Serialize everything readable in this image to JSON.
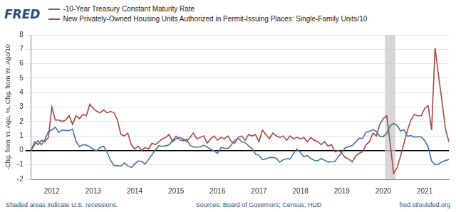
{
  "chart_data": {
    "type": "line",
    "logo_text": "FRED",
    "y_label": "-Chg. from Yr. Ago, %, Chg. from Yr. Ago/10",
    "footnote": "Shaded areas indicate U.S. recessions.",
    "source": "Sources: Board of Governors; Census; HUD",
    "source_url": "fred.stlouisfed.org",
    "legend": "top-left",
    "grid": true,
    "ylim": [
      -2,
      8
    ],
    "yticks": [
      -2,
      -1,
      0,
      1,
      2,
      3,
      4,
      5,
      6,
      7,
      8
    ],
    "categories": [
      null,
      null,
      null,
      null,
      null,
      null,
      "2012",
      null,
      null,
      null,
      null,
      null,
      null,
      null,
      null,
      null,
      null,
      null,
      "2013",
      null,
      null,
      null,
      null,
      null,
      null,
      null,
      null,
      null,
      null,
      null,
      "2014",
      null,
      null,
      null,
      null,
      null,
      null,
      null,
      null,
      null,
      null,
      null,
      "2015",
      null,
      null,
      null,
      null,
      null,
      null,
      null,
      null,
      null,
      null,
      null,
      "2016",
      null,
      null,
      null,
      null,
      null,
      null,
      null,
      null,
      null,
      null,
      null,
      "2017",
      null,
      null,
      null,
      null,
      null,
      null,
      null,
      null,
      null,
      null,
      null,
      "2018",
      null,
      null,
      null,
      null,
      null,
      null,
      null,
      null,
      null,
      null,
      null,
      "2019",
      null,
      null,
      null,
      null,
      null,
      null,
      null,
      null,
      null,
      null,
      null,
      "2020",
      null,
      null,
      null,
      null,
      null,
      null,
      null,
      null,
      null,
      null,
      null,
      "2021",
      null,
      null,
      null,
      null,
      null,
      null,
      null
    ],
    "recession": [
      false,
      false,
      false,
      false,
      false,
      false,
      false,
      false,
      false,
      false,
      false,
      false,
      false,
      false,
      false,
      false,
      false,
      false,
      false,
      false,
      false,
      false,
      false,
      false,
      false,
      false,
      false,
      false,
      false,
      false,
      false,
      false,
      false,
      false,
      false,
      false,
      false,
      false,
      false,
      false,
      false,
      false,
      false,
      false,
      false,
      false,
      false,
      false,
      false,
      false,
      false,
      false,
      false,
      false,
      false,
      false,
      false,
      false,
      false,
      false,
      false,
      false,
      false,
      false,
      false,
      false,
      false,
      false,
      false,
      false,
      false,
      false,
      false,
      false,
      false,
      false,
      false,
      false,
      false,
      false,
      false,
      false,
      false,
      false,
      false,
      false,
      false,
      false,
      false,
      false,
      false,
      false,
      false,
      false,
      false,
      false,
      false,
      false,
      false,
      false,
      false,
      false,
      false,
      true,
      true,
      true,
      false,
      false,
      false,
      false,
      false,
      false,
      false,
      false,
      false,
      false,
      false,
      false,
      false,
      false,
      false,
      false
    ],
    "series": [
      {
        "name": "-10-Year Treasury Constant Maturity Rate",
        "color": "#4572a7",
        "values": [
          0.01,
          0.4,
          0.67,
          0.39,
          0.75,
          1.31,
          1.42,
          1.61,
          1.24,
          1.41,
          1.37,
          1.38,
          1.47,
          0.62,
          0.26,
          0.4,
          0.36,
          0.26,
          0.06,
          -0.01,
          0.21,
          0.29,
          -0.13,
          -0.68,
          -1.05,
          -1.06,
          -1.09,
          -0.87,
          -1.07,
          -1.18,
          -0.95,
          -0.73,
          -0.76,
          -0.95,
          -0.63,
          -0.3,
          0.04,
          0.32,
          0.28,
          0.32,
          0.39,
          0.69,
          0.98,
          0.73,
          0.68,
          0.77,
          0.36,
          0.24,
          0.22,
          0.25,
          0.36,
          0.23,
          0.07,
          -0.03,
          -0.21,
          0.2,
          0.15,
          0.13,
          0.39,
          0.72,
          0.82,
          0.61,
          0.54,
          0.31,
          0.12,
          -0.25,
          -0.34,
          -0.64,
          -0.59,
          -0.49,
          -0.49,
          -0.55,
          -0.82,
          -0.65,
          -0.57,
          -0.6,
          -0.21,
          0.09,
          -0.15,
          -0.44,
          -0.36,
          -0.57,
          -0.68,
          -0.72,
          -0.57,
          -0.68,
          -0.8,
          -0.79,
          -0.77,
          -0.43,
          -0.13,
          0.18,
          0.27,
          0.34,
          0.58,
          0.84,
          0.83,
          1.26,
          1.3,
          1.44,
          1.31,
          0.97,
          0.95,
          1.18,
          1.7,
          1.87,
          1.73,
          1.34,
          1.44,
          0.98,
          1.02,
          0.92,
          0.94,
          0.93,
          0.68,
          0.24,
          -0.74,
          -0.98,
          -0.95,
          -0.79,
          -0.7,
          -0.63
        ]
      },
      {
        "name": "New Privately-Owned Housing Units Authorized in Permit-Issuing Places: Single-Family Units/10",
        "color": "#aa4643",
        "values": [
          0.0,
          0.6,
          0.4,
          0.7,
          0.6,
          0.9,
          3.0,
          2.1,
          2.1,
          2.0,
          2.1,
          2.4,
          1.8,
          2.4,
          2.2,
          2.5,
          2.4,
          3.2,
          2.9,
          2.7,
          2.6,
          2.8,
          2.6,
          2.7,
          2.6,
          2.1,
          1.1,
          1.0,
          1.2,
          0.4,
          0.1,
          0.3,
          0.0,
          0.2,
          0.1,
          0.5,
          0.4,
          0.6,
          0.8,
          0.9,
          1.1,
          0.6,
          0.8,
          0.9,
          0.8,
          0.6,
          0.9,
          1.2,
          0.8,
          0.9,
          1.0,
          0.5,
          0.8,
          1.0,
          0.7,
          0.9,
          0.8,
          1.0,
          0.6,
          0.5,
          0.9,
          1.0,
          0.7,
          1.1,
          1.0,
          1.1,
          0.6,
          1.4,
          1.1,
          0.8,
          1.2,
          1.0,
          0.9,
          1.0,
          0.7,
          1.0,
          0.8,
          0.9,
          0.8,
          0.9,
          0.6,
          0.9,
          0.7,
          0.6,
          0.4,
          0.6,
          0.3,
          0.4,
          -0.1,
          0.0,
          -0.2,
          -0.5,
          -0.6,
          -0.8,
          -0.4,
          -0.2,
          -0.1,
          0.4,
          0.6,
          1.2,
          1.0,
          1.8,
          2.2,
          2.4,
          0.5,
          -1.6,
          -1.2,
          -0.4,
          0.5,
          1.4,
          2.1,
          2.5,
          2.4,
          2.4,
          2.9,
          3.1,
          1.4,
          7.1,
          5.2,
          3.4,
          1.5,
          0.6
        ]
      }
    ]
  }
}
